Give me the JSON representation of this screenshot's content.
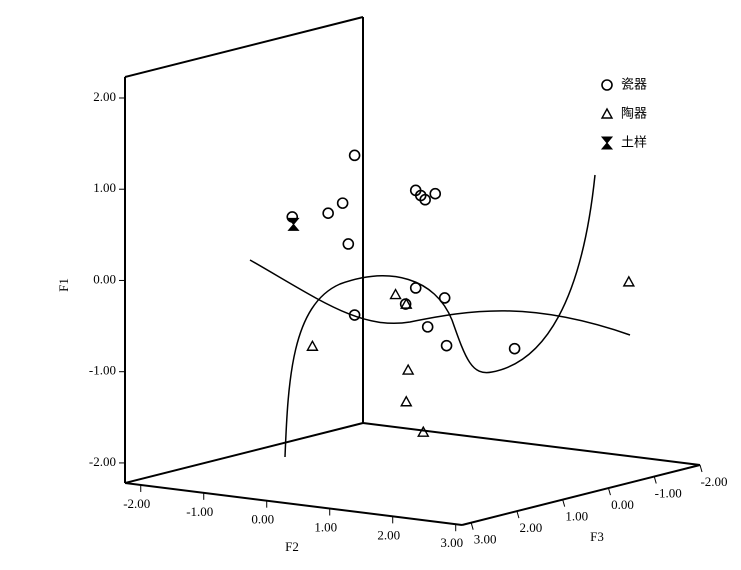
{
  "chart_data": {
    "type": "scatter3d",
    "xlabel": "F2",
    "ylabel": "F1",
    "zlabel": "F3",
    "xlim": [
      -2.25,
      3.1
    ],
    "zlim": [
      -2,
      3.2
    ],
    "ylim": [
      -2.22,
      2.23
    ],
    "xticks": [
      {
        "value": -2,
        "label": "-2.00"
      },
      {
        "value": -1,
        "label": "-1.00"
      },
      {
        "value": 0,
        "label": "0.00"
      },
      {
        "value": 1,
        "label": "1.00"
      },
      {
        "value": 2,
        "label": "2.00"
      },
      {
        "value": 3,
        "label": "3.00"
      }
    ],
    "zticks": [
      {
        "value": 3,
        "label": "3.00"
      },
      {
        "value": 2,
        "label": "2.00"
      },
      {
        "value": 1,
        "label": "1.00"
      },
      {
        "value": 0,
        "label": "0.00"
      },
      {
        "value": -1,
        "label": "-1.00"
      },
      {
        "value": -2,
        "label": "-2.00"
      }
    ],
    "yticks": [
      {
        "value": -2,
        "label": "-2.00"
      },
      {
        "value": -1,
        "label": "-1.00"
      },
      {
        "value": 0,
        "label": "0.00"
      },
      {
        "value": 1,
        "label": "1.00"
      },
      {
        "value": 2,
        "label": "2.00"
      }
    ],
    "legend": "upper right",
    "series": [
      {
        "name": "瓷器",
        "marker": "circle",
        "color": "#000000",
        "x": [
          -0.93,
          -1.92,
          -1.35,
          -1.12,
          -1.03,
          0.04,
          0.12,
          0.19,
          0.35,
          -0.93,
          0.04,
          -0.12,
          0.5,
          0.23,
          0.53,
          1.61
        ],
        "z": [
          0,
          0,
          0,
          0,
          0,
          0,
          0,
          0,
          0,
          0,
          0,
          0,
          0,
          0,
          0,
          0
        ],
        "values": [
          1.08,
          0.32,
          0.41,
          0.54,
          0.1,
          0.78,
          0.73,
          0.69,
          0.77,
          -0.67,
          -0.29,
          -0.48,
          -0.36,
          -0.7,
          -0.88,
          -0.82
        ]
      },
      {
        "name": "陶器",
        "marker": "triangle",
        "color": "#000000",
        "x": [
          -1.6,
          -0.28,
          -0.11,
          -0.08,
          -0.11,
          0.16,
          1.97
        ],
        "z": [
          0,
          0,
          0,
          0,
          0,
          0,
          -2
        ],
        "values": [
          -1.07,
          -0.39,
          -0.48,
          -1.2,
          -1.55,
          -1.86,
          -0.31
        ]
      },
      {
        "name": "土样",
        "marker": "hourglass",
        "color": "#000000",
        "x": [
          -1.9
        ],
        "z": [
          0
        ],
        "values": [
          0.24
        ]
      }
    ]
  }
}
